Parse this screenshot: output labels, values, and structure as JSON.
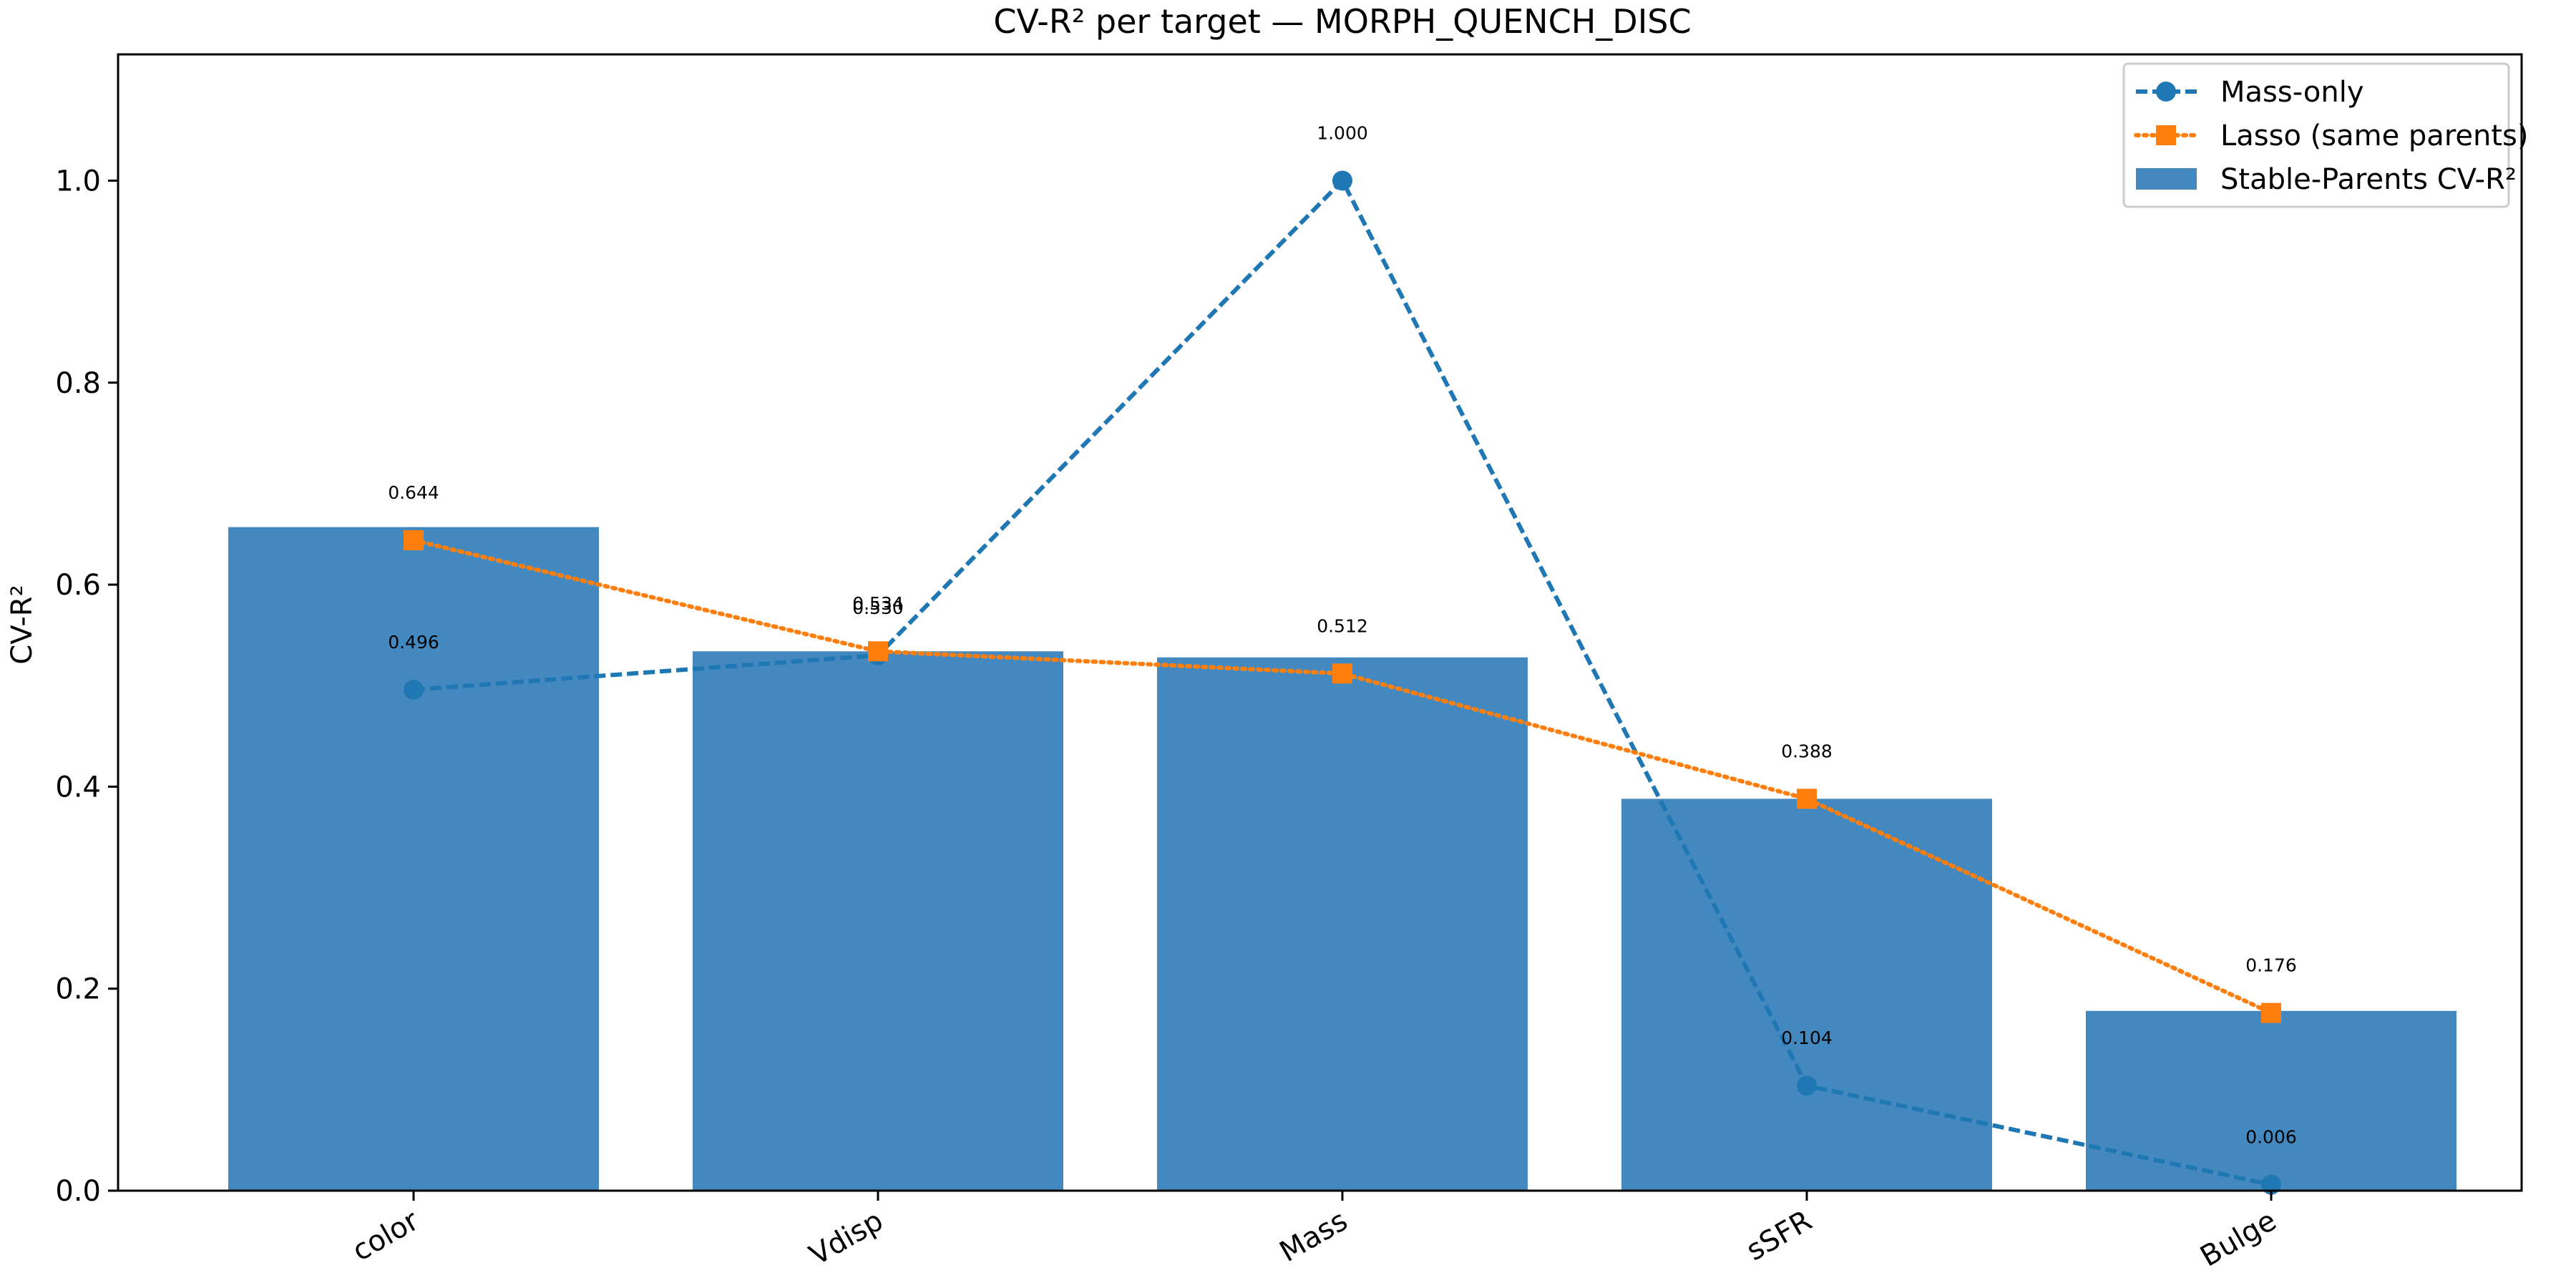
{
  "chart_data": {
    "type": "bar",
    "title": "CV-R² per target — MORPH_QUENCH_DISC",
    "xlabel": "",
    "ylabel": "CV-R²",
    "categories": [
      "color",
      "Vdisp",
      "Mass",
      "sSFR",
      "Bulge"
    ],
    "ylim": [
      0,
      1.125
    ],
    "yticks": [
      0.0,
      0.2,
      0.4,
      0.6,
      0.8,
      1.0
    ],
    "ytick_labels": [
      "0.0",
      "0.2",
      "0.4",
      "0.6",
      "0.8",
      "1.0"
    ],
    "grid": false,
    "legend_position": "top-right",
    "series": [
      {
        "name": "Stable-Parents CV-R²",
        "kind": "bar",
        "color": "#4389bf",
        "values": [
          0.657,
          0.534,
          0.528,
          0.388,
          0.178
        ]
      },
      {
        "name": "Mass-only",
        "kind": "line",
        "style": "dashed",
        "marker": "circle",
        "color": "#1f77b4",
        "values": [
          0.496,
          0.53,
          1.0,
          0.104,
          0.006
        ],
        "labels": [
          "0.496",
          "0.530",
          "1.000",
          "0.104",
          "0.006"
        ]
      },
      {
        "name": "Lasso (same parents)",
        "kind": "line",
        "style": "dotted",
        "marker": "square",
        "color": "#ff7f0e",
        "values": [
          0.644,
          0.534,
          0.512,
          0.388,
          0.176
        ],
        "labels": [
          "0.644",
          "0.534",
          "0.512",
          "0.388",
          "0.176"
        ]
      }
    ]
  }
}
